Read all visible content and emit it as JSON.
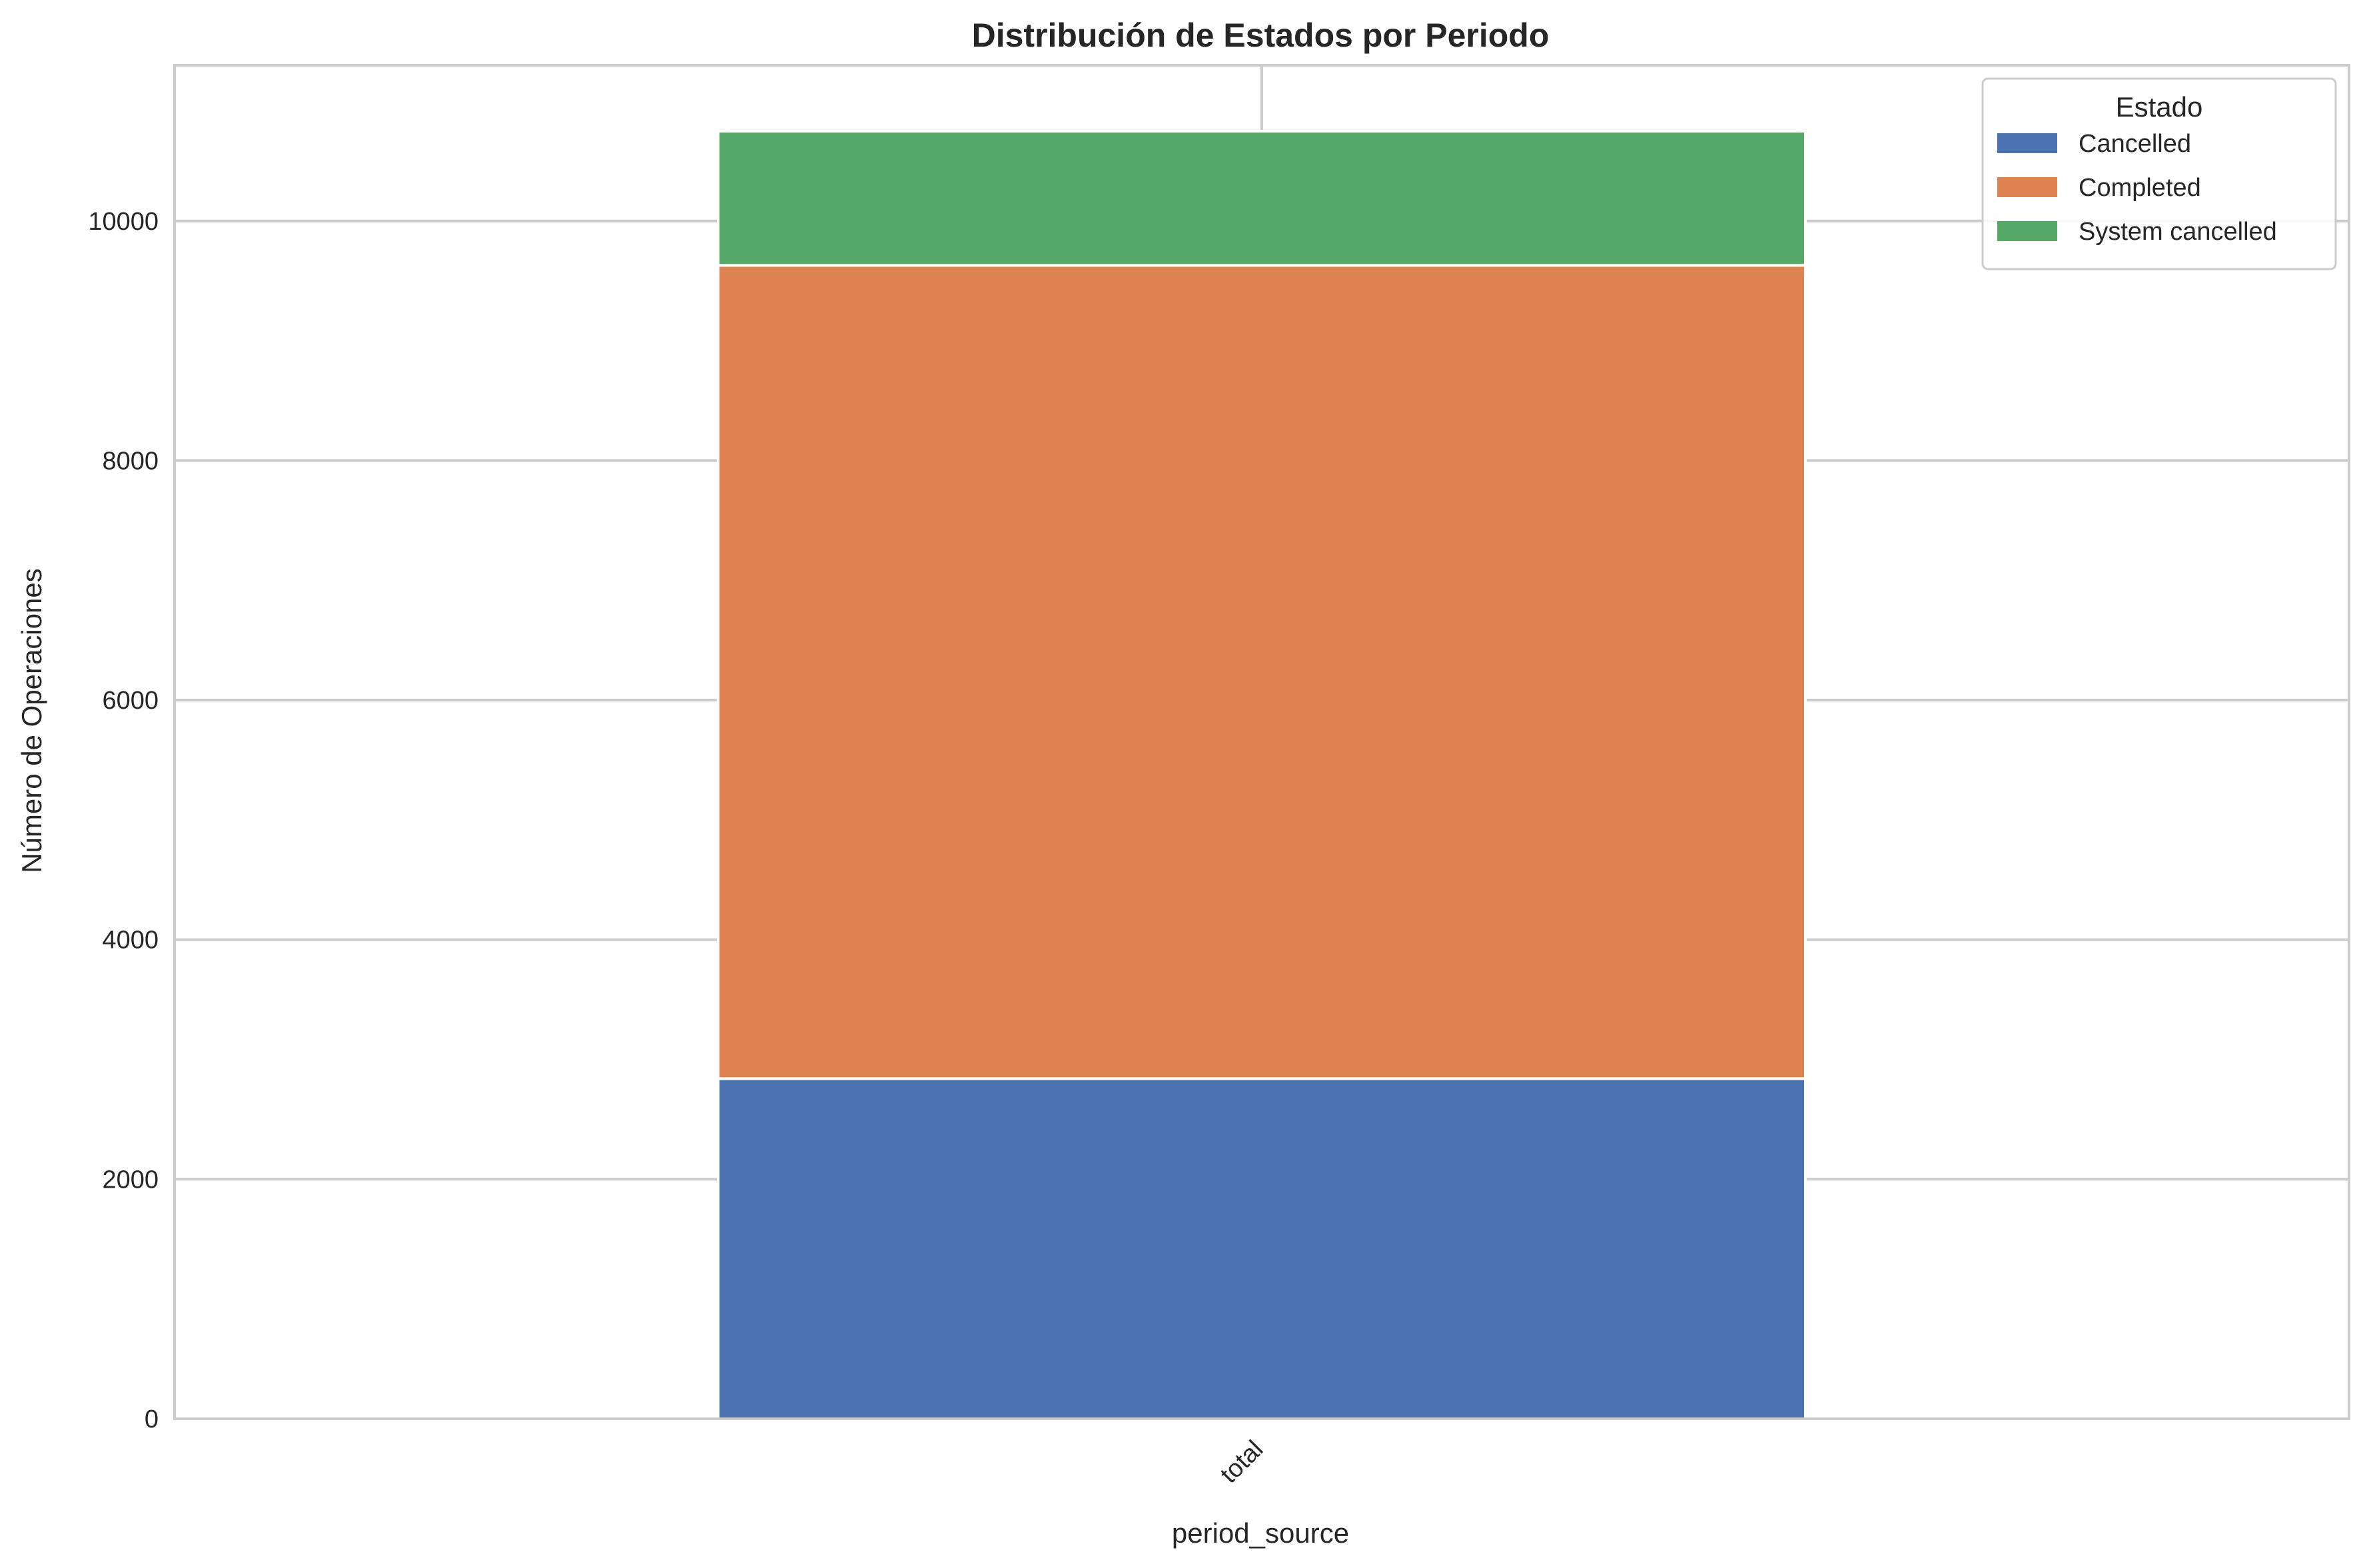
{
  "chart_data": {
    "type": "bar",
    "stacked": true,
    "title": "Distribución de Estados por Periodo",
    "xlabel": "period_source",
    "ylabel": "Número de Operaciones",
    "categories": [
      "total"
    ],
    "series": [
      {
        "name": "Cancelled",
        "values": [
          2840
        ],
        "color": "#4c72b0"
      },
      {
        "name": "Completed",
        "values": [
          6790
        ],
        "color": "#dd8452"
      },
      {
        "name": "System cancelled",
        "values": [
          1120
        ],
        "color": "#55a868"
      }
    ],
    "ylim": [
      0,
      11300
    ],
    "yticks": [
      "0",
      "2000",
      "4000",
      "6000",
      "8000",
      "10000"
    ],
    "grid": true,
    "legend": {
      "title": "Estado",
      "position": "top-right"
    }
  }
}
